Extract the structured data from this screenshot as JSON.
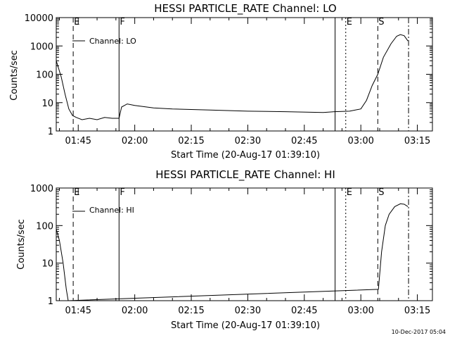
{
  "chart_data": [
    {
      "type": "line",
      "title": "HESSI PARTICLE_RATE Channel: LO",
      "xlabel": "Start Time (20-Aug-17 01:39:10)",
      "ylabel": "Counts/sec",
      "yscale": "log",
      "ylim": [
        1,
        10000
      ],
      "xlim": [
        "01:39:10",
        "03:19:00"
      ],
      "x_ticks": [
        "01:45",
        "02:00",
        "02:15",
        "02:30",
        "02:45",
        "03:00",
        "03:15"
      ],
      "y_ticks": [
        "1",
        "10",
        "100",
        "1000",
        "10000"
      ],
      "legend": "Channel: LO",
      "legend_placement": "top-left",
      "markers": [
        {
          "label": "E",
          "time": "01:43:40",
          "style": "dashed"
        },
        {
          "label": "F",
          "time": "01:55:50",
          "style": "solid"
        },
        {
          "label": "",
          "time": "02:53:10",
          "style": "solid"
        },
        {
          "label": "E",
          "time": "02:56:00",
          "style": "dotted"
        },
        {
          "label": "S",
          "time": "03:04:30",
          "style": "dashed"
        },
        {
          "label": "",
          "time": "03:12:40",
          "style": "dashdot"
        }
      ],
      "series": [
        {
          "x": [
            "01:39:10",
            "01:40:30",
            "01:41:30",
            "01:42:30",
            "01:43:30",
            "01:44:30",
            "01:46:00",
            "01:48:00",
            "01:50:00",
            "01:52:00",
            "01:54:00",
            "01:55:50",
            "01:56:30",
            "01:58:00",
            "02:00:00",
            "02:05:00",
            "02:10:00",
            "02:20:00",
            "02:30:00",
            "02:40:00",
            "02:50:00",
            "02:53:00",
            "02:57:00",
            "03:00:00",
            "03:01:30",
            "03:03:00",
            "03:04:30",
            "03:06:00",
            "03:08:00",
            "03:09:30",
            "03:10:30",
            "03:11:30",
            "03:12:30"
          ],
          "y": [
            300,
            80,
            20,
            6,
            3.5,
            3,
            2.5,
            2.8,
            2.5,
            3,
            2.8,
            2.8,
            7,
            9,
            8,
            6.5,
            6,
            5.5,
            5,
            4.8,
            4.5,
            4.8,
            5,
            6,
            12,
            40,
            100,
            400,
            1200,
            2200,
            2500,
            2300,
            1500
          ]
        }
      ]
    },
    {
      "type": "line",
      "title": "HESSI PARTICLE_RATE Channel: HI",
      "xlabel": "Start Time (20-Aug-17 01:39:10)",
      "ylabel": "Counts/sec",
      "yscale": "log",
      "ylim": [
        1,
        1000
      ],
      "xlim": [
        "01:39:10",
        "03:19:00"
      ],
      "x_ticks": [
        "01:45",
        "02:00",
        "02:15",
        "02:30",
        "02:45",
        "03:00",
        "03:15"
      ],
      "y_ticks": [
        "1",
        "10",
        "100",
        "1000"
      ],
      "legend": "Channel: HI",
      "legend_placement": "top-left",
      "markers": [
        {
          "label": "E",
          "time": "01:43:40",
          "style": "dashed"
        },
        {
          "label": "F",
          "time": "01:55:50",
          "style": "solid"
        },
        {
          "label": "",
          "time": "02:53:10",
          "style": "solid"
        },
        {
          "label": "E",
          "time": "02:56:00",
          "style": "dotted"
        },
        {
          "label": "S",
          "time": "03:04:30",
          "style": "dashed"
        },
        {
          "label": "",
          "time": "03:12:40",
          "style": "dashdot"
        }
      ],
      "series": [
        {
          "x": [
            "01:39:10",
            "01:40:00",
            "01:41:00",
            "01:41:50",
            "01:42:20",
            "03:04:40",
            "03:05:30",
            "03:06:30",
            "03:07:30",
            "03:09:00",
            "03:10:30",
            "03:11:30",
            "03:12:30"
          ],
          "y": [
            80,
            40,
            10,
            2,
            1,
            2,
            20,
            100,
            200,
            320,
            380,
            370,
            320
          ]
        }
      ]
    }
  ],
  "stamp": "10-Dec-2017 05:04"
}
